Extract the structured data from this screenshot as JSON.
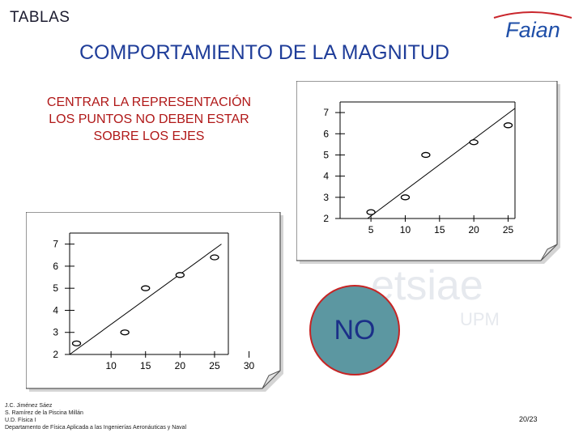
{
  "header": {
    "label": "TABLAS",
    "title": "COMPORTAMIENTO DE LA MAGNITUD"
  },
  "logo": {
    "text": "Faian"
  },
  "note": {
    "lines": [
      "CENTRAR LA REPRESENTACIÓN",
      "LOS PUNTOS NO DEBEN ESTAR",
      "SOBRE LOS EJES"
    ]
  },
  "chart_data": [
    {
      "type": "scatter",
      "title": "",
      "x_ticks": [
        "5",
        "10",
        "15",
        "20",
        "25"
      ],
      "y_ticks": [
        "2",
        "3",
        "4",
        "5",
        "6",
        "7"
      ],
      "points": [
        {
          "x": 5,
          "y": 2.3
        },
        {
          "x": 10,
          "y": 3.0
        },
        {
          "x": 13,
          "y": 5.0
        },
        {
          "x": 20,
          "y": 5.6
        },
        {
          "x": 25,
          "y": 6.4
        }
      ],
      "trend_line": [
        {
          "x": 4.5,
          "y": 2.0
        },
        {
          "x": 26,
          "y": 7.2
        }
      ]
    },
    {
      "type": "scatter",
      "title": "",
      "x_ticks": [
        "10",
        "15",
        "20",
        "25",
        "30"
      ],
      "y_ticks": [
        "2",
        "3",
        "4",
        "5",
        "6",
        "7"
      ],
      "points": [
        {
          "x": 5,
          "y": 2.5
        },
        {
          "x": 12,
          "y": 3.0
        },
        {
          "x": 15,
          "y": 5.0
        },
        {
          "x": 20,
          "y": 5.6
        },
        {
          "x": 25,
          "y": 6.4
        }
      ],
      "trend_line": [
        {
          "x": 4,
          "y": 2.0
        },
        {
          "x": 26,
          "y": 7.0
        }
      ]
    }
  ],
  "stamp": {
    "text": "NO",
    "fill": "#5c97a1",
    "border": "#c62424"
  },
  "watermark": {
    "text": "etsiae",
    "subtext": "UPM"
  },
  "footer": {
    "credits": [
      "J.C. Jiménez Sáez",
      "S. Ramírez de la Piscina Millán",
      "U.D. Física I",
      "Departamento de Física Aplicada a las Ingenierías Aeronáuticas y Naval"
    ],
    "page": "20/23"
  },
  "colors": {
    "title": "#1f3d99",
    "note": "#b01818",
    "card_bg": "#ffffff",
    "card_shadow": "#d4d4d4"
  }
}
